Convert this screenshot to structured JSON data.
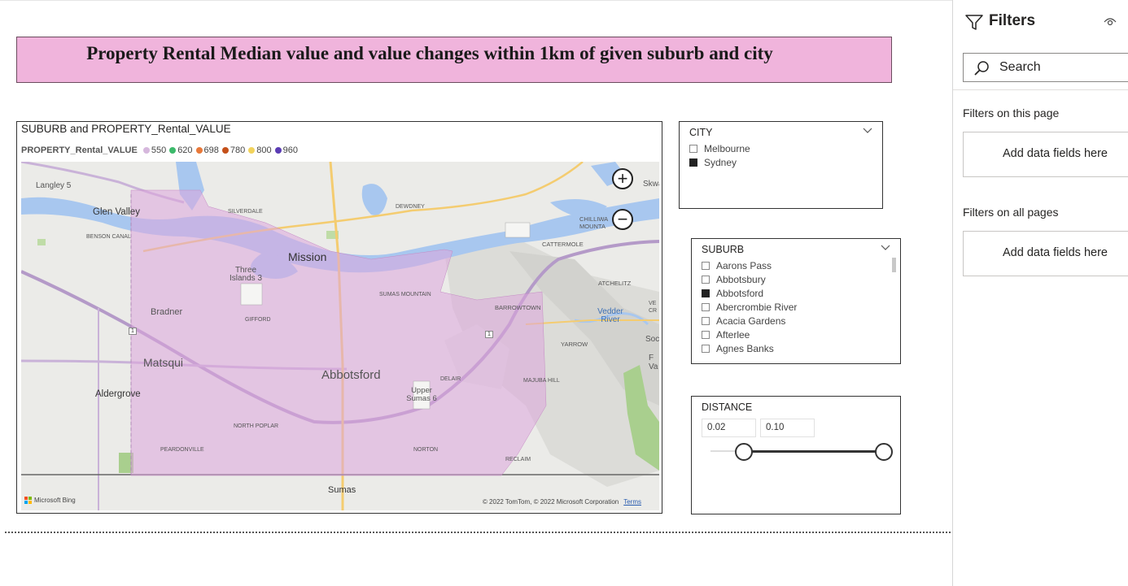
{
  "title": "Property Rental Median value and value changes within 1km of given suburb and city",
  "map": {
    "title": "SUBURB and PROPERTY_Rental_VALUE",
    "legend_title": "PROPERTY_Rental_VALUE",
    "legend": [
      {
        "label": "550",
        "color": "#d6b8dd"
      },
      {
        "label": "620",
        "color": "#3cba6b"
      },
      {
        "label": "698",
        "color": "#e8793a"
      },
      {
        "label": "780",
        "color": "#c4501a"
      },
      {
        "label": "800",
        "color": "#f2d35c"
      },
      {
        "label": "960",
        "color": "#5b3cb4"
      }
    ],
    "labels": {
      "langley": "Langley 5",
      "glen_valley": "Glen Valley",
      "benson": "BENSON CANAL",
      "silverdale": "SILVERDALE",
      "dewdney": "DEWDNEY",
      "chilliwack": "CHILLIWA MOUNTA",
      "skwah": "Skwah",
      "cattermole": "CATTERMOLE",
      "mission": "Mission",
      "three_islands": "Three Islands 3",
      "sumas_mountain": "SUMAS MOUNTAIN",
      "atchelitz": "ATCHELITZ",
      "barrowtown": "BARROWTOWN",
      "bradner": "Bradner",
      "gifford": "GIFFORD",
      "vedder": "Vedder River",
      "yarrow": "YARROW",
      "matsqui": "Matsqui",
      "abbotsford": "Abbotsford",
      "delair": "DELAIR",
      "majuba": "MAJUBA HILL",
      "upper_sumas": "Upper Sumas 6",
      "aldergrove": "Aldergrove",
      "north_poplar": "NORTH POPLAR",
      "peardonville": "PEARDONVILLE",
      "norton": "NORTON",
      "reclaim": "RECLAIM",
      "sumas": "Sumas",
      "hwy1a": "1",
      "hwy1b": "1",
      "soc": "Soc",
      "fva": "F Va",
      "vecr": "VE CR"
    },
    "bing": "Microsoft Bing",
    "copyright": "© 2022 TomTom, © 2022 Microsoft Corporation",
    "terms": "Terms",
    "zoom_in": "+",
    "zoom_out": "−"
  },
  "city_slicer": {
    "header": "CITY",
    "options": [
      {
        "label": "Melbourne",
        "checked": false
      },
      {
        "label": "Sydney",
        "checked": true
      }
    ]
  },
  "suburb_slicer": {
    "header": "SUBURB",
    "options": [
      {
        "label": "Aarons Pass",
        "checked": false
      },
      {
        "label": "Abbotsbury",
        "checked": false
      },
      {
        "label": "Abbotsford",
        "checked": true
      },
      {
        "label": "Abercrombie River",
        "checked": false
      },
      {
        "label": "Acacia Gardens",
        "checked": false
      },
      {
        "label": "Afterlee",
        "checked": false
      },
      {
        "label": "Agnes Banks",
        "checked": false
      }
    ]
  },
  "distance_slicer": {
    "header": "DISTANCE",
    "min_value": "0.02",
    "max_value": "0.10"
  },
  "filters_pane": {
    "title": "Filters",
    "search_placeholder": "Search",
    "on_this_page": "Filters on this page",
    "on_all_pages": "Filters on all pages",
    "add_fields": "Add data fields here"
  }
}
